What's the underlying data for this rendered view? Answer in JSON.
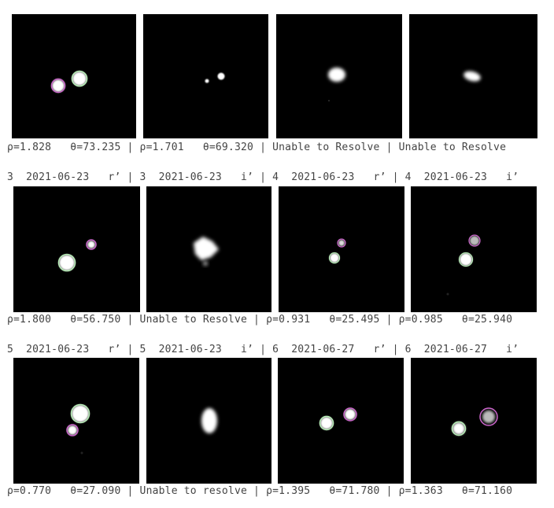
{
  "colors": {
    "panel_bg": "#000000",
    "star": "#ffffff",
    "primary_marker": "#b8f0b8",
    "secondary_marker": "#cc66cc",
    "text": "#444444"
  },
  "rows": [
    {
      "header": "",
      "caption": "ρ=1.828   θ=73.235 | ρ=1.701   θ=69.320 | Unable to Resolve | Unable to Resolve"
    },
    {
      "header": "3  2021-06-23   r’ | 3  2021-06-23   i’ | 4  2021-06-23   r’ | 4  2021-06-23   i’",
      "caption": "ρ=1.800   θ=56.750 | Unable to Resolve | ρ=0.931   θ=25.495 | ρ=0.985   θ=25.940"
    },
    {
      "header": "5  2021-06-23   r’ | 5  2021-06-23   i’ | 6  2021-06-27   r’ | 6  2021-06-27   i’",
      "caption": "ρ=0.770   θ=27.090 | Unable to resolve | ρ=1.395   θ=71.780 | ρ=1.363   θ=71.160"
    }
  ]
}
